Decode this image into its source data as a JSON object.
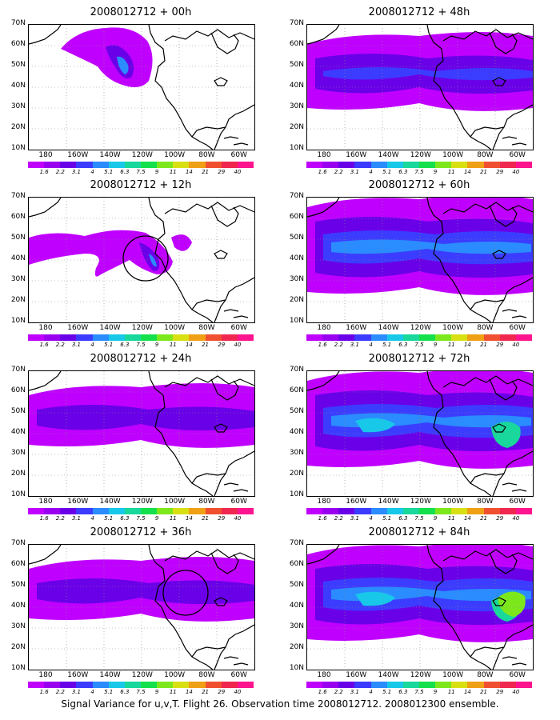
{
  "caption": "Signal Variance for u,v,T. Flight 26. Observation time 2008012712. 2008012300 ensemble.",
  "lat_labels": [
    "70N",
    "60N",
    "50N",
    "40N",
    "30N",
    "20N",
    "10N"
  ],
  "lon_labels": [
    "180",
    "160W",
    "140W",
    "120W",
    "100W",
    "80W",
    "60W"
  ],
  "colorbar": {
    "labels": [
      "1.6",
      "2.2",
      "3.1",
      "4",
      "5.1",
      "6.3",
      "7.5",
      "9",
      "11",
      "14",
      "21",
      "29",
      "40"
    ],
    "colors": [
      "#c000ff",
      "#9a00f0",
      "#6a00e8",
      "#3c3cff",
      "#2a8cff",
      "#18c8e8",
      "#18d89c",
      "#14e04c",
      "#7ce81c",
      "#d8e014",
      "#f0a014",
      "#f05030",
      "#f02850",
      "#ff1490"
    ]
  },
  "panels": [
    {
      "title": "2008012712 + 00h",
      "level": 0,
      "circle": false
    },
    {
      "title": "2008012712 + 48h",
      "level": 3,
      "circle": false
    },
    {
      "title": "2008012712 + 12h",
      "level": 1,
      "circle": true,
      "circle_pos": "west-coast"
    },
    {
      "title": "2008012712 + 60h",
      "level": 4,
      "circle": false
    },
    {
      "title": "2008012712 + 24h",
      "level": 2,
      "circle": false
    },
    {
      "title": "2008012712 + 72h",
      "level": 5,
      "circle": false
    },
    {
      "title": "2008012712 + 36h",
      "level": 2,
      "circle": true,
      "circle_pos": "central-us"
    },
    {
      "title": "2008012712 + 84h",
      "level": 6,
      "circle": false
    }
  ]
}
